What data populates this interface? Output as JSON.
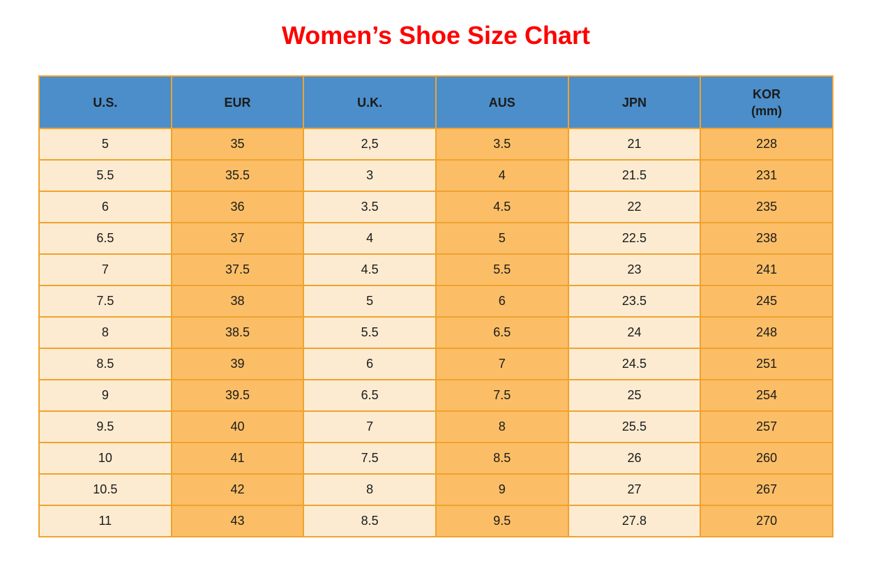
{
  "title": {
    "text": "Women’s Shoe Size Chart"
  },
  "colors": {
    "title_red": "#fe0000",
    "header_blue": "#4b8ec9",
    "cell_cream": "#fcebd1",
    "cell_orange": "#fbbe66",
    "grid_orange": "#f0a22e",
    "text_dark": "#1b1b1b",
    "page_bg": "#ffffff"
  },
  "table": {
    "headers": [
      {
        "line1": "U.S.",
        "line2": ""
      },
      {
        "line1": "EUR",
        "line2": ""
      },
      {
        "line1": "U.K.",
        "line2": ""
      },
      {
        "line1": "AUS",
        "line2": ""
      },
      {
        "line1": "JPN",
        "line2": ""
      },
      {
        "line1": "KOR",
        "line2": "(mm)"
      }
    ]
  },
  "chart_data": {
    "type": "table",
    "title": "Women’s Shoe Size Chart",
    "columns": [
      "U.S.",
      "EUR",
      "U.K.",
      "AUS",
      "JPN",
      "KOR (mm)"
    ],
    "rows": [
      [
        "5",
        "35",
        "2,5",
        "3.5",
        "21",
        "228"
      ],
      [
        "5.5",
        "35.5",
        "3",
        "4",
        "21.5",
        "231"
      ],
      [
        "6",
        "36",
        "3.5",
        "4.5",
        "22",
        "235"
      ],
      [
        "6.5",
        "37",
        "4",
        "5",
        "22.5",
        "238"
      ],
      [
        "7",
        "37.5",
        "4.5",
        "5.5",
        "23",
        "241"
      ],
      [
        "7.5",
        "38",
        "5",
        "6",
        "23.5",
        "245"
      ],
      [
        "8",
        "38.5",
        "5.5",
        "6.5",
        "24",
        "248"
      ],
      [
        "8.5",
        "39",
        "6",
        "7",
        "24.5",
        "251"
      ],
      [
        "9",
        "39.5",
        "6.5",
        "7.5",
        "25",
        "254"
      ],
      [
        "9.5",
        "40",
        "7",
        "8",
        "25.5",
        "257"
      ],
      [
        "10",
        "41",
        "7.5",
        "8.5",
        "26",
        "260"
      ],
      [
        "10.5",
        "42",
        "8",
        "9",
        "27",
        "267"
      ],
      [
        "11",
        "43",
        "8.5",
        "9.5",
        "27.8",
        "270"
      ]
    ],
    "layout": {
      "column_fill_pattern": [
        "cream",
        "orange",
        "cream",
        "orange",
        "cream",
        "orange"
      ],
      "header_fill": "blue",
      "grid": "on"
    }
  }
}
